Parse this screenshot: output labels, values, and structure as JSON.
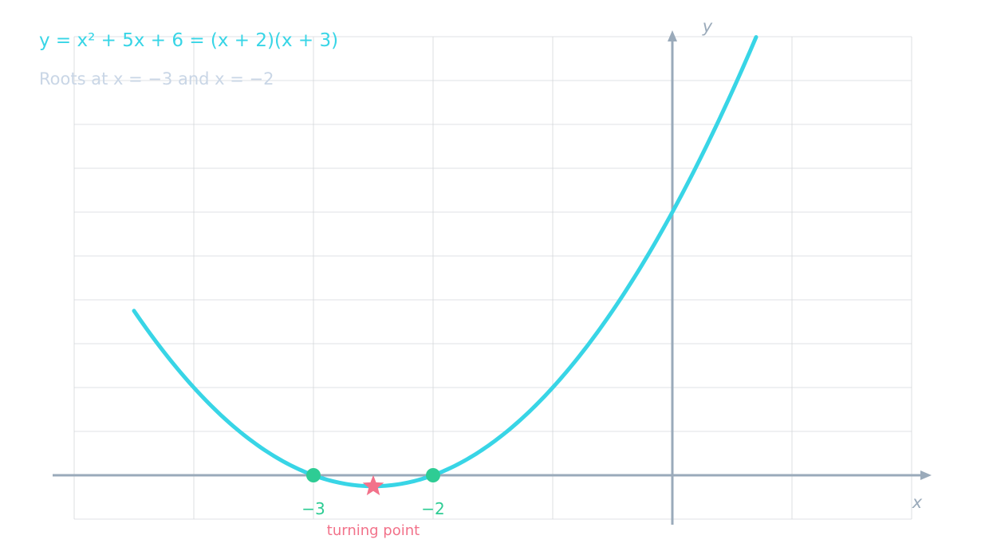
{
  "title": "y = x² + 5x + 6 = (x + 2)(x + 3)",
  "subtitle": "Roots at x = −3 and x = −2",
  "colors": {
    "curve": "#38d5e6",
    "roots": "#2ecc94",
    "turning_point": "#f2728a",
    "axes": "#9aaaba",
    "grid": "#d4d7db"
  },
  "chart_data": {
    "type": "line",
    "title": "y = x² + 5x + 6 = (x + 2)(x + 3)",
    "subtitle": "Roots at x = −3 and x = −2",
    "xlabel": "x",
    "ylabel": "y",
    "xlim": [
      -5,
      2
    ],
    "ylim": [
      -1,
      10
    ],
    "grid": true,
    "series": [
      {
        "function": "x^2 + 5x + 6",
        "x_range": [
          -4.5,
          0.7
        ]
      }
    ],
    "roots": [
      {
        "x": -3,
        "y": 0,
        "label": "−3"
      },
      {
        "x": -2,
        "y": 0,
        "label": "−2"
      }
    ],
    "turning_point": {
      "x": -2.5,
      "y": -0.25,
      "label": "turning point"
    }
  }
}
